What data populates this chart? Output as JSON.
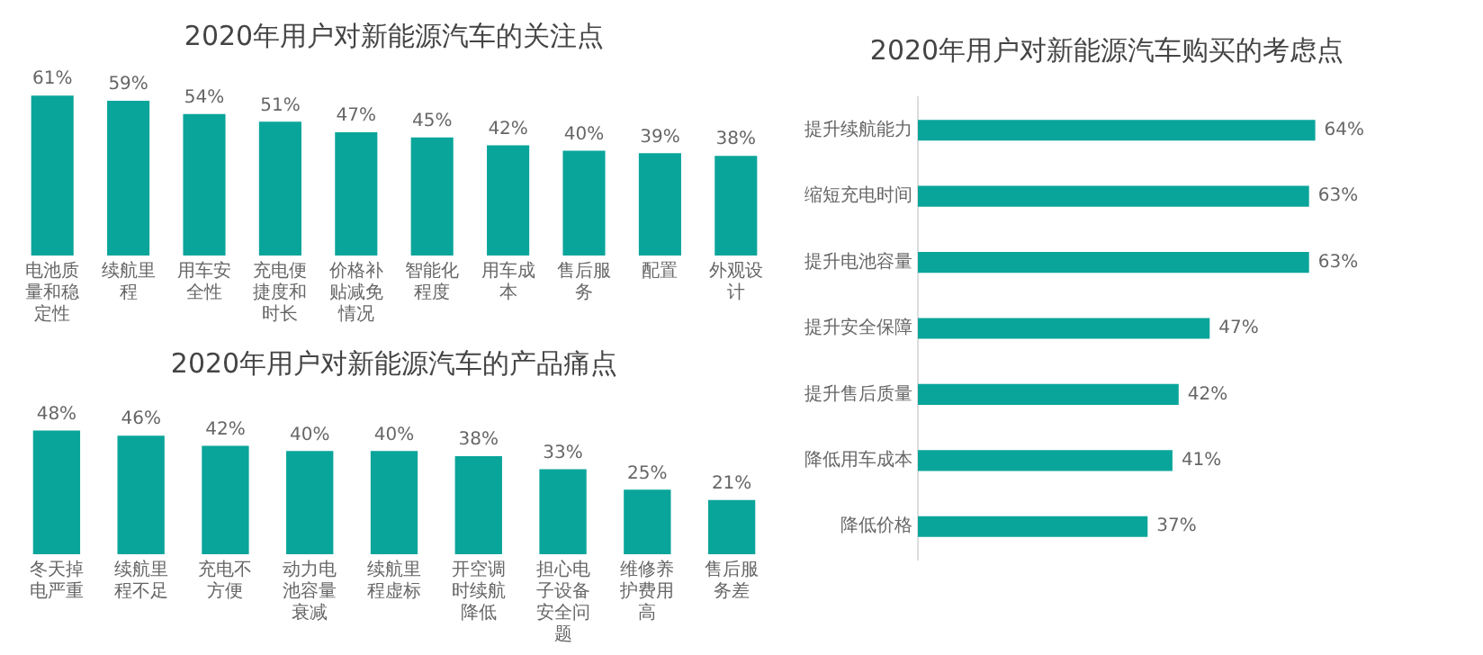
{
  "chart_data": [
    {
      "type": "bar",
      "title": "2020年用户对新能源汽车的关注点",
      "categories": [
        "电池质量和稳定性",
        "续航里程",
        "用车安全性",
        "充电便捷度和时长",
        "价格补贴减免情况",
        "智能化程度",
        "用车成本",
        "售后服务",
        "配置",
        "外观设计"
      ],
      "values": [
        61,
        59,
        54,
        51,
        47,
        45,
        42,
        40,
        39,
        38
      ],
      "value_labels": [
        "61%",
        "59%",
        "54%",
        "51%",
        "47%",
        "45%",
        "42%",
        "40%",
        "39%",
        "38%"
      ],
      "color": "#0aa59a",
      "grid": false,
      "legend": false,
      "tick_labels": "x"
    },
    {
      "type": "bar",
      "title": "2020年用户对新能源汽车的产品痛点",
      "categories": [
        "冬天掉电严重",
        "续航里程不足",
        "充电不方便",
        "动力电池容量衰减",
        "续航里程虚标",
        "开空调时续航降低",
        "担心电子设备安全问题",
        "维修养护费用高",
        "售后服务差"
      ],
      "values": [
        48,
        46,
        42,
        40,
        40,
        38,
        33,
        25,
        21
      ],
      "value_labels": [
        "48%",
        "46%",
        "42%",
        "40%",
        "40%",
        "38%",
        "33%",
        "25%",
        "21%"
      ],
      "color": "#0aa59a",
      "grid": false,
      "legend": false,
      "tick_labels": "x"
    },
    {
      "type": "bar",
      "orientation": "horizontal",
      "title": "2020年用户对新能源汽车购买的考虑点",
      "categories": [
        "提升续航能力",
        "缩短充电时间",
        "提升电池容量",
        "提升安全保障",
        "提升售后质量",
        "降低用车成本",
        "降低价格"
      ],
      "values": [
        64,
        63,
        63,
        47,
        42,
        41,
        37
      ],
      "value_labels": [
        "64%",
        "63%",
        "63%",
        "47%",
        "42%",
        "41%",
        "37%"
      ],
      "color": "#0aa59a",
      "grid": false,
      "legend": false,
      "tick_labels": "y"
    }
  ]
}
